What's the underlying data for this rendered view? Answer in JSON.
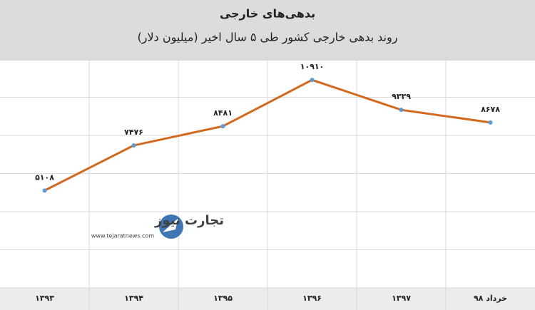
{
  "chart_data": {
    "type": "line",
    "title": "بدهی‌های خارجی",
    "subtitle": "روند بدهی خارجی کشور طی ۵ سال اخیر (میلیون دلار)",
    "categories": [
      "۱۳۹۳",
      "۱۳۹۴",
      "۱۳۹۵",
      "۱۳۹۶",
      "۱۳۹۷",
      "خرداد ۹۸"
    ],
    "values": [
      5108,
      7476,
      8481,
      10910,
      9339,
      8678
    ],
    "value_labels": [
      "۵۱۰۸",
      "۷۴۷۶",
      "۸۴۸۱",
      "۱۰۹۱۰",
      "۹۳۳۹",
      "۸۶۷۸"
    ],
    "color": "#d2691e",
    "marker_color": "#5b9bd5",
    "ylim": [
      0,
      12000
    ],
    "yticks": [
      0,
      2000,
      4000,
      6000,
      8000,
      10000,
      12000
    ],
    "grid": true,
    "logo": {
      "name": "تجارت نیوز",
      "url": "www.tejaratnews.com"
    }
  }
}
